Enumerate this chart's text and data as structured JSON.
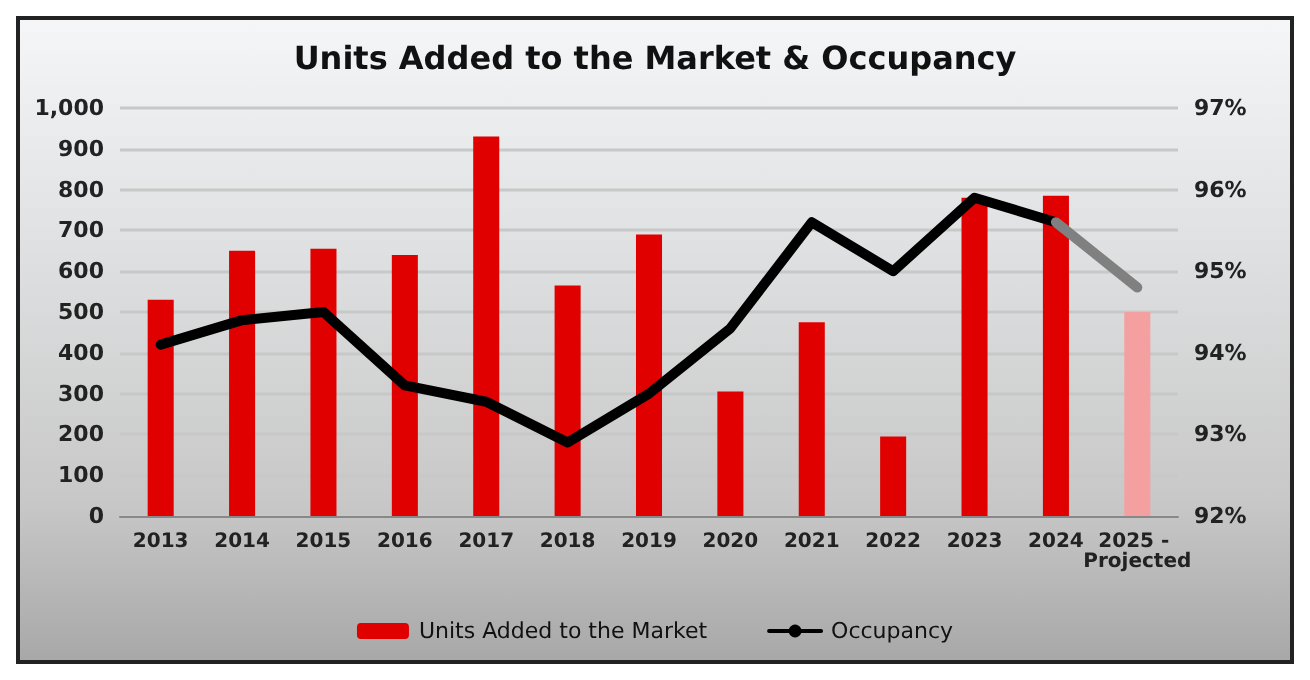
{
  "chart_data": {
    "type": "bar",
    "title": "Units Added to the Market & Occupancy",
    "categories": [
      "2013",
      "2014",
      "2015",
      "2016",
      "2017",
      "2018",
      "2019",
      "2020",
      "2021",
      "2022",
      "2023",
      "2024",
      "2025 - Projected"
    ],
    "series": [
      {
        "name": "Units Added to the Market",
        "color": "#e00000",
        "colors": [
          "#e00000",
          "#e00000",
          "#e00000",
          "#e00000",
          "#e00000",
          "#e00000",
          "#e00000",
          "#e00000",
          "#e00000",
          "#e00000",
          "#e00000",
          "#e00000",
          "#f4a0a0"
        ],
        "values": [
          530,
          650,
          655,
          640,
          930,
          565,
          690,
          305,
          475,
          195,
          780,
          785,
          500
        ]
      },
      {
        "name": "Occupancy",
        "type": "line",
        "axis": "y2",
        "color": "#000000",
        "values": [
          94.1,
          94.4,
          94.5,
          93.6,
          93.4,
          92.9,
          93.5,
          94.3,
          95.6,
          95.0,
          95.9,
          95.6,
          null
        ]
      },
      {
        "type": "line",
        "axis": "y2",
        "color": "#808080",
        "values": [
          null,
          null,
          null,
          null,
          null,
          null,
          null,
          null,
          null,
          null,
          null,
          95.6,
          94.8
        ]
      }
    ],
    "ylim": [
      0,
      1000
    ],
    "yticks": [
      0,
      100,
      200,
      300,
      400,
      500,
      600,
      700,
      800,
      900,
      {
        "value": 1000,
        "label": "1,000"
      }
    ],
    "y2lim": [
      92,
      97
    ],
    "y2ticks": [
      {
        "value": 92,
        "label": "92%"
      },
      {
        "value": 93,
        "label": "93%"
      },
      {
        "value": 94,
        "label": "94%"
      },
      {
        "value": 95,
        "label": "95%"
      },
      {
        "value": 96,
        "label": "96%"
      },
      {
        "value": 97,
        "label": "97%"
      }
    ],
    "grid": "y",
    "legend": "bottom",
    "marker": "none",
    "line_style": "solid"
  }
}
